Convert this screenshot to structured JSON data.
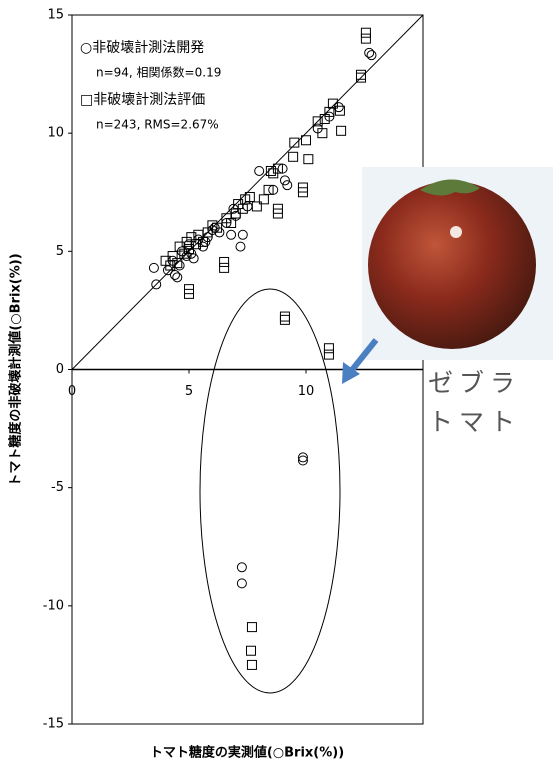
{
  "chart_data": {
    "type": "scatter",
    "x_label": "トマト糖度の実測値(○Brix(%))",
    "y_label": "トマト糖度の非破壊計測値(○Brix(%))",
    "xlim": [
      0,
      15
    ],
    "ylim": [
      -15,
      15
    ],
    "xticks": [
      0,
      5,
      10
    ],
    "yticks": [
      -15,
      -10,
      -5,
      0,
      5,
      10,
      15
    ],
    "identity_line": true,
    "annotation": [
      "ゼブラ",
      "トマト"
    ],
    "series": [
      {
        "name": "○非破壊計測法開発",
        "legend_note": "n=94, 相関係数=0.19",
        "marker": "circle",
        "color": "#000000",
        "x": [
          3.5,
          3.6,
          4.1,
          4.3,
          4.5,
          4.6,
          4.7,
          4.9,
          5.0,
          5.2,
          5.4,
          5.6,
          5.8,
          6.0,
          6.3,
          6.6,
          6.8,
          7.0,
          7.2,
          7.3,
          7.5,
          8.0,
          8.6,
          9.1,
          9.0,
          9.2,
          10.5,
          11.0,
          11.4,
          12.8,
          12.7,
          4.4,
          5.1,
          5.7,
          6.1,
          6.9,
          9.87,
          9.87,
          7.26,
          7.26
        ],
        "values": [
          4.3,
          3.6,
          4.2,
          4.6,
          3.9,
          4.4,
          5.0,
          4.8,
          5.3,
          4.7,
          5.5,
          5.2,
          5.6,
          5.9,
          5.8,
          6.2,
          5.7,
          6.5,
          5.2,
          5.7,
          6.9,
          8.4,
          7.6,
          8.0,
          8.5,
          7.8,
          10.2,
          10.7,
          11.1,
          13.3,
          13.4,
          4.0,
          4.9,
          5.4,
          6.0,
          6.8,
          -3.72,
          -3.85,
          -8.37,
          -9.05
        ]
      },
      {
        "name": "□非破壊計測法評価",
        "legend_note": "n=243, RMS=2.67%",
        "marker": "square",
        "color": "#000000",
        "x": [
          4.0,
          4.2,
          4.3,
          4.5,
          4.6,
          4.8,
          4.9,
          5.0,
          5.0,
          5.0,
          5.1,
          5.3,
          5.4,
          5.6,
          5.8,
          6.0,
          6.2,
          6.5,
          6.5,
          6.6,
          6.8,
          7.0,
          7.1,
          7.3,
          7.4,
          7.6,
          7.9,
          8.2,
          8.4,
          8.5,
          8.6,
          8.8,
          8.8,
          8.8,
          9.1,
          9.1,
          9.45,
          9.5,
          9.87,
          9.87,
          10.0,
          10.1,
          10.5,
          10.8,
          10.7,
          11.0,
          11.15,
          11.45,
          11.5,
          10.98,
          10.98,
          12.35,
          12.35,
          12.56,
          12.56,
          7.69,
          7.65,
          7.69
        ],
        "values": [
          4.6,
          4.4,
          4.8,
          4.5,
          5.2,
          4.9,
          5.4,
          5.1,
          3.4,
          3.2,
          5.6,
          5.3,
          5.7,
          5.4,
          5.8,
          6.1,
          6.0,
          4.55,
          4.3,
          6.4,
          6.2,
          6.6,
          7.0,
          6.8,
          7.2,
          7.3,
          6.9,
          7.2,
          7.6,
          8.4,
          8.3,
          6.8,
          6.6,
          8.5,
          2.24,
          2.1,
          9.0,
          9.6,
          7.7,
          7.5,
          9.7,
          8.9,
          10.5,
          10.6,
          10.0,
          10.9,
          11.25,
          10.95,
          10.1,
          0.63,
          0.9,
          12.47,
          12.35,
          14.25,
          14.0,
          -10.9,
          -11.9,
          -12.5
        ]
      }
    ]
  }
}
